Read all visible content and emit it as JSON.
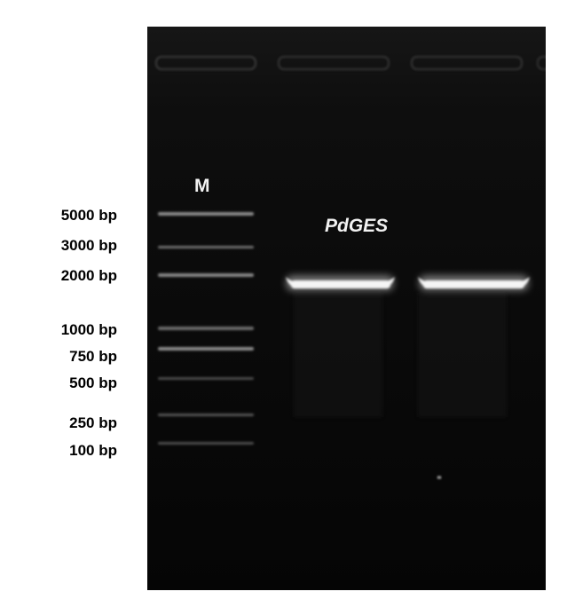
{
  "ladder": {
    "labels": [
      "5000 bp",
      "3000 bp",
      "2000 bp",
      "1000 bp",
      "750 bp",
      "500 bp",
      "250 bp",
      "100 bp"
    ]
  },
  "gel": {
    "marker_lane_label": "M",
    "gene_label": "PdGES"
  },
  "colors": {
    "background": "#ffffff",
    "gel": "#0a0a0a",
    "band": "#f5f5f5",
    "text_on_gel": "#f2f2f2"
  }
}
